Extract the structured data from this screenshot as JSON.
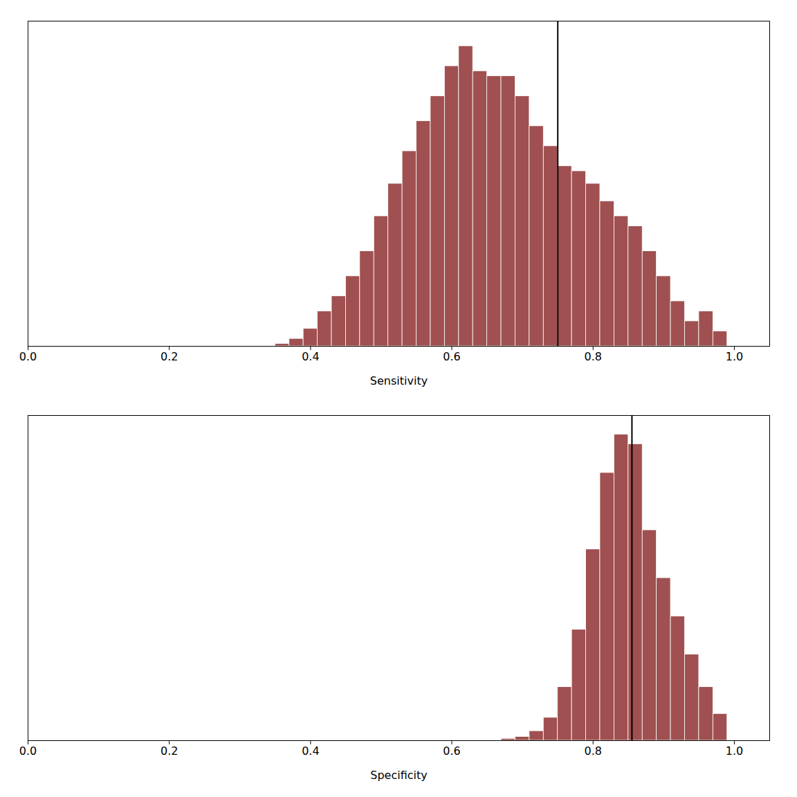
{
  "chart_data": [
    {
      "type": "histogram",
      "xlabel": "Sensitivity",
      "bins": [
        0.35,
        0.37,
        0.39,
        0.41,
        0.43,
        0.45,
        0.47,
        0.49,
        0.51,
        0.53,
        0.55,
        0.57,
        0.59,
        0.61,
        0.63,
        0.65,
        0.67,
        0.69,
        0.71,
        0.73,
        0.75,
        0.77,
        0.79,
        0.81,
        0.83,
        0.85,
        0.87,
        0.89,
        0.91,
        0.93,
        0.95,
        0.97,
        0.99,
        1.01
      ],
      "values": [
        1,
        3,
        7,
        14,
        20,
        28,
        38,
        52,
        65,
        78,
        90,
        100,
        112,
        120,
        110,
        108,
        108,
        100,
        88,
        80,
        72,
        70,
        65,
        58,
        52,
        48,
        38,
        28,
        18,
        10,
        14,
        6,
        0
      ],
      "vline": 0.75,
      "color": "#a05050",
      "xlim": [
        0.0,
        1.05
      ],
      "xticks": [
        {
          "value": 0.0,
          "label": "0.0"
        },
        0.2,
        0.4,
        0.6,
        0.8,
        {
          "value": 1.0,
          "label": "1.0"
        }
      ],
      "ylim": [
        0,
        130
      ],
      "tick_labels": "x",
      "grid": false
    },
    {
      "type": "histogram",
      "xlabel": "Specificity",
      "bins": [
        0.67,
        0.69,
        0.71,
        0.73,
        0.75,
        0.77,
        0.79,
        0.81,
        0.83,
        0.85,
        0.87,
        0.89,
        0.91,
        0.93,
        0.95,
        0.97,
        0.99,
        1.01
      ],
      "values": [
        1,
        2,
        5,
        12,
        28,
        58,
        100,
        140,
        160,
        155,
        110,
        85,
        65,
        45,
        28,
        14,
        0
      ],
      "vline": 0.855,
      "color": "#a05050",
      "xlim": [
        0.0,
        1.05
      ],
      "xticks": [
        {
          "value": 0.0,
          "label": "0.0"
        },
        0.2,
        0.4,
        0.6,
        0.8,
        {
          "value": 1.0,
          "label": "1.0"
        }
      ],
      "ylim": [
        0,
        170
      ],
      "tick_labels": "x",
      "grid": false
    }
  ]
}
